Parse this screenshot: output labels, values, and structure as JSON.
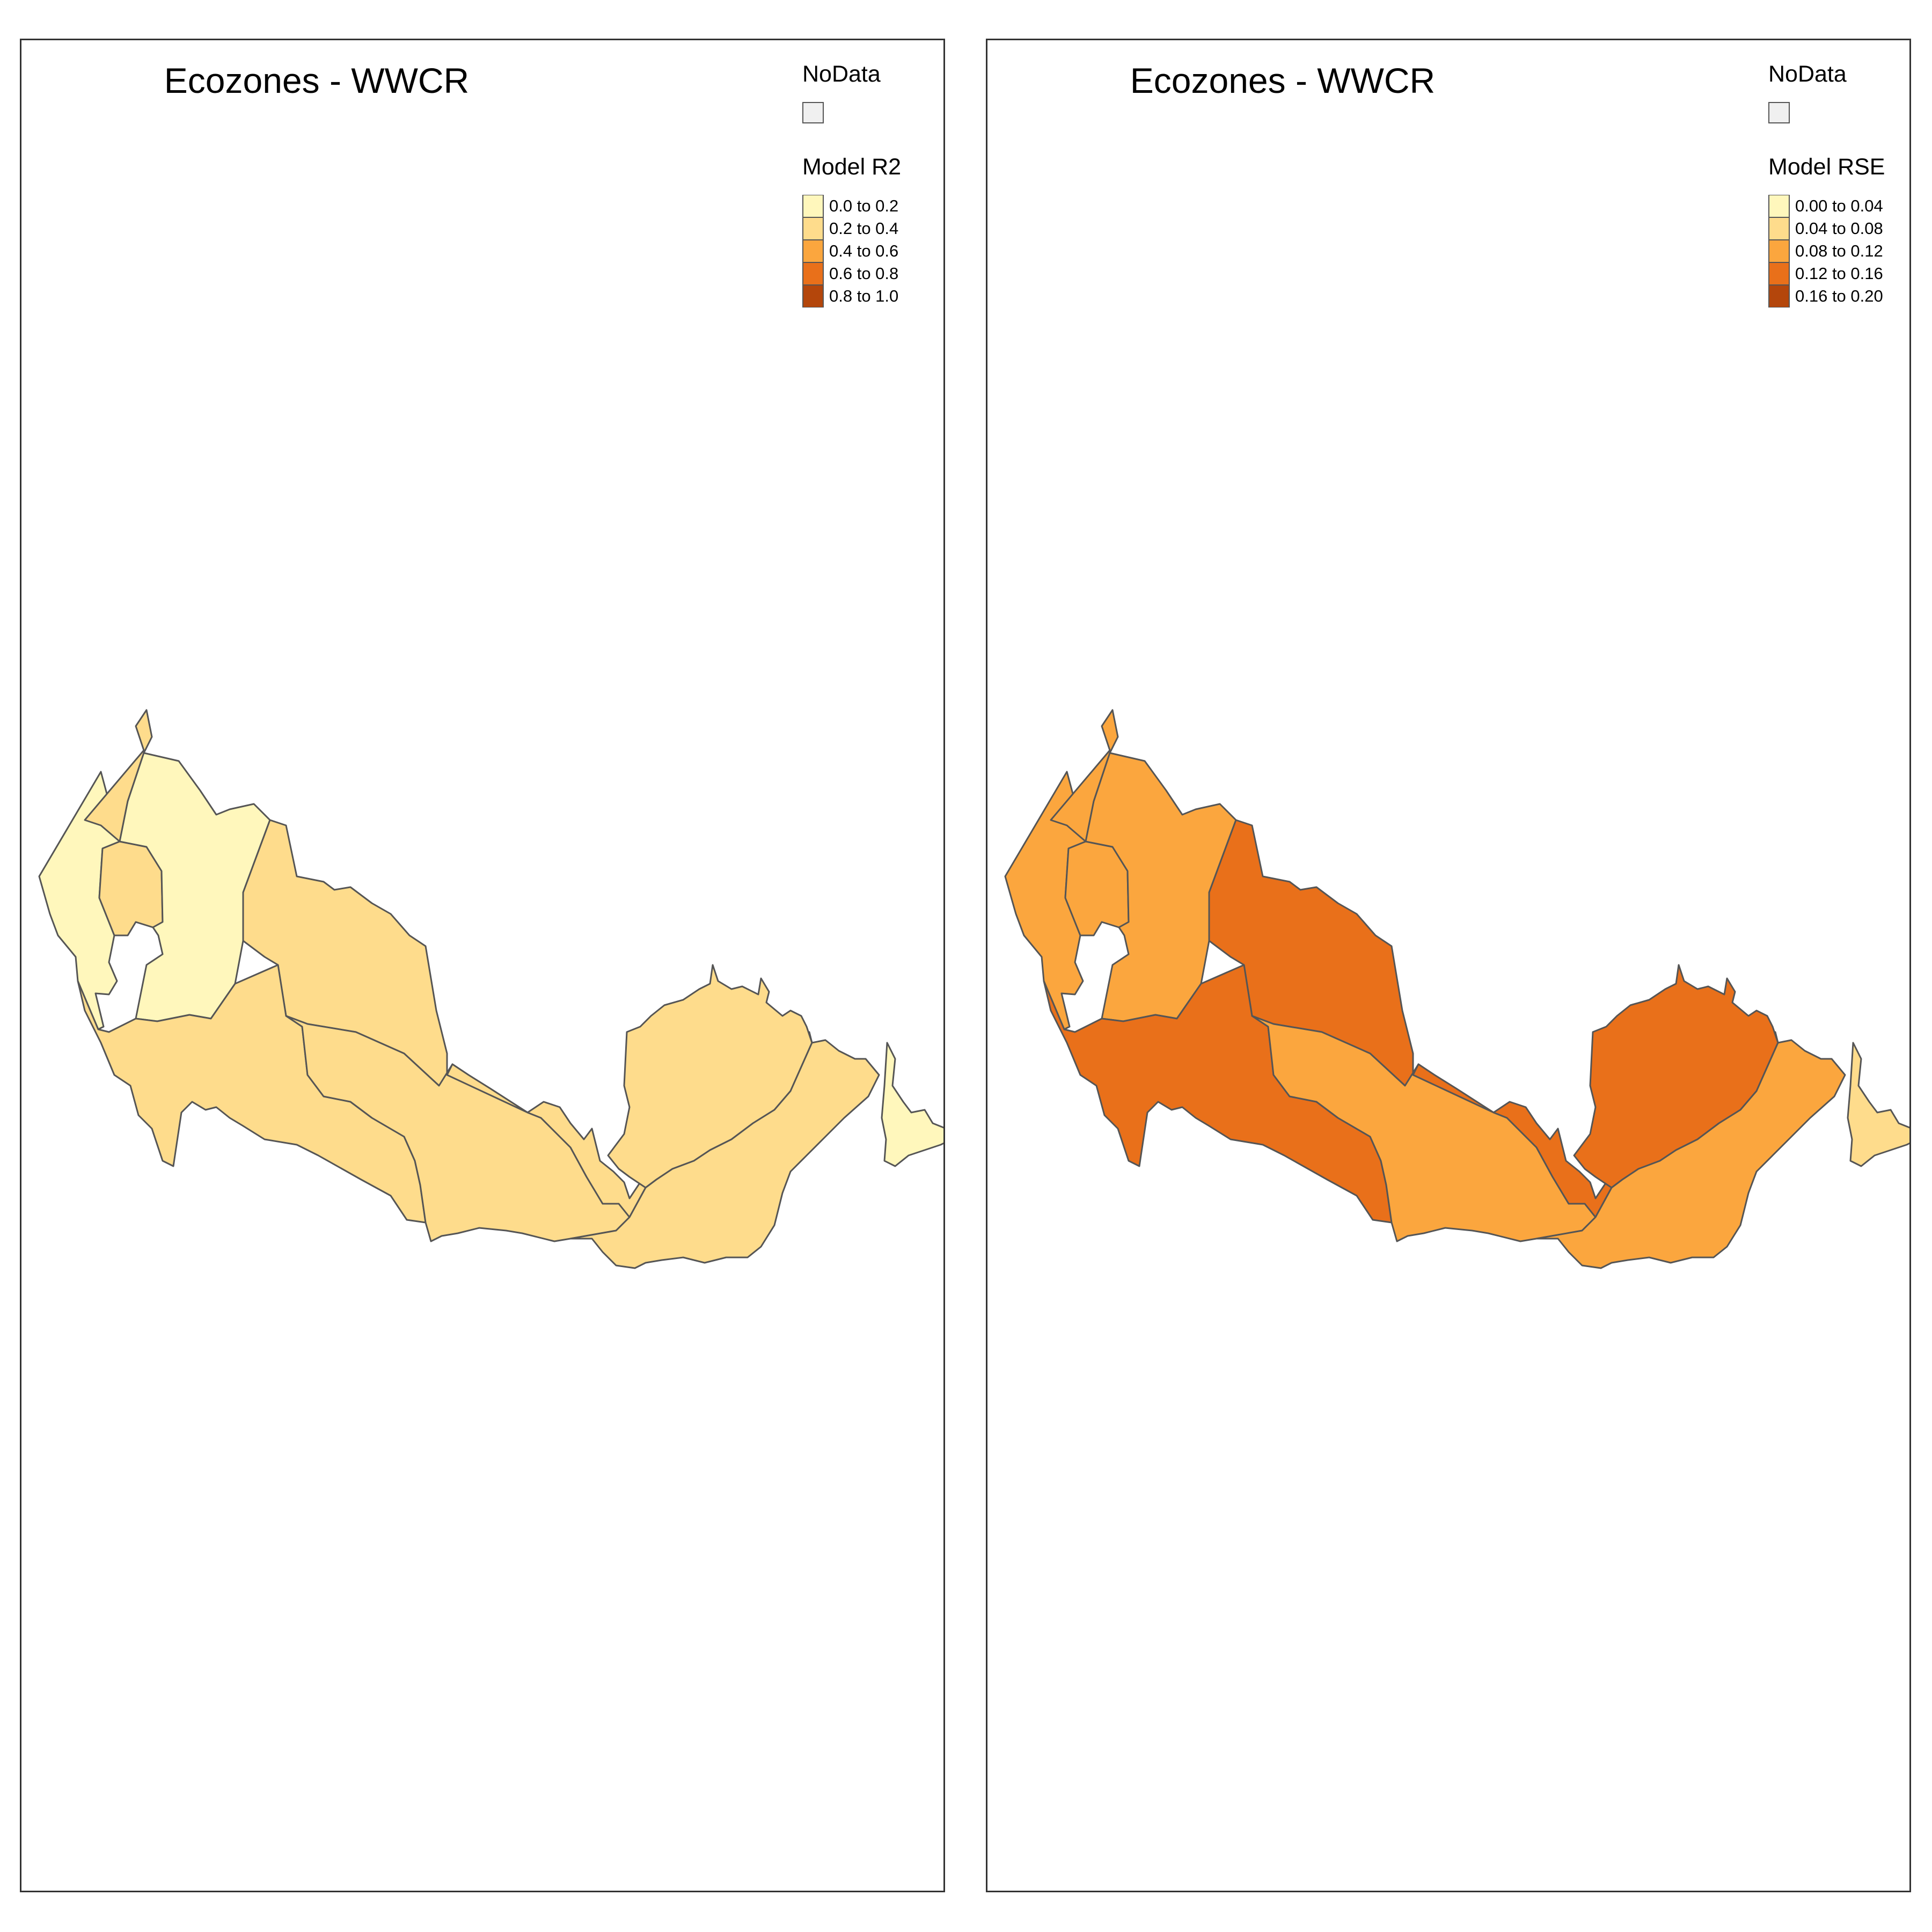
{
  "colors": {
    "nodata": "#f0f0f0",
    "border": "#555555",
    "class_1": "#fff7bc",
    "class_2": "#fedc8c",
    "class_3": "#fba63e",
    "class_4": "#e9701a",
    "class_5": "#b4460b"
  },
  "maps": [
    {
      "title": "Ecozones - WWCR",
      "legend": {
        "nodata_label": "NoData",
        "variable_label": "Model R2",
        "classes": [
          {
            "label": "0.0 to 0.2",
            "color": "#fff7bc"
          },
          {
            "label": "0.2 to 0.4",
            "color": "#fedc8c"
          },
          {
            "label": "0.4 to 0.6",
            "color": "#fba63e"
          },
          {
            "label": "0.6 to 0.8",
            "color": "#e9701a"
          },
          {
            "label": "0.8 to 1.0",
            "color": "#b4460b"
          }
        ]
      },
      "region_fills": {
        "west": "#fff7bc",
        "northwest-strip": "#fedc8c",
        "inner-west": "#fedc8c",
        "north-central": "#fff7bc",
        "central-north": "#fedc8c",
        "southwest": "#fedc8c",
        "central": "#fedc8c",
        "east-central": "#fedc8c",
        "east": "#fedc8c",
        "southeast": "#fedc8c",
        "newfoundland": "#fff7bc"
      }
    },
    {
      "title": "Ecozones - WWCR",
      "legend": {
        "nodata_label": "NoData",
        "variable_label": "Model RSE",
        "classes": [
          {
            "label": "0.00 to 0.04",
            "color": "#fff7bc"
          },
          {
            "label": "0.04 to 0.08",
            "color": "#fedc8c"
          },
          {
            "label": "0.08 to 0.12",
            "color": "#fba63e"
          },
          {
            "label": "0.12 to 0.16",
            "color": "#e9701a"
          },
          {
            "label": "0.16 to 0.20",
            "color": "#b4460b"
          }
        ]
      },
      "region_fills": {
        "west": "#fba63e",
        "northwest-strip": "#fba63e",
        "inner-west": "#fba63e",
        "north-central": "#fba63e",
        "central-north": "#e9701a",
        "southwest": "#e9701a",
        "central": "#fba63e",
        "east-central": "#e9701a",
        "east": "#e9701a",
        "southeast": "#fba63e",
        "newfoundland": "#fedc8c"
      }
    }
  ]
}
